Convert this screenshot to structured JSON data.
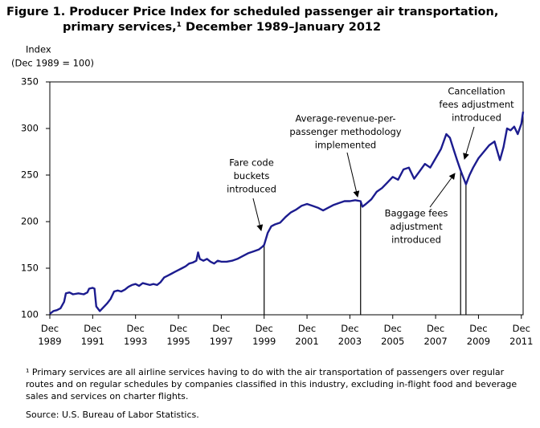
{
  "chart_data": {
    "type": "line",
    "title": "Figure 1. Producer Price Index for scheduled passenger air transportation, primary services,¹ December 1989–January 2012",
    "y_label": [
      "Index",
      "(Dec 1989 = 100)"
    ],
    "color": "#1c1c8f",
    "xlim": [
      "Dec 1989",
      "Jan 2012"
    ],
    "xticks": [
      "Dec 1989",
      "Dec 1991",
      "Dec 1993",
      "Dec 1995",
      "Dec 1997",
      "Dec 1999",
      "Dec 2001",
      "Dec 2003",
      "Dec 2005",
      "Dec 2007",
      "Dec 2009",
      "Dec 2011"
    ],
    "ylim": [
      100,
      350
    ],
    "yticks": [
      100,
      150,
      200,
      250,
      300,
      350
    ],
    "x": [
      "Dec 1989",
      "Feb 1990",
      "Apr 1990",
      "Jun 1990",
      "Aug 1990",
      "Sep 1990",
      "Nov 1990",
      "Jan 1991",
      "Apr 1991",
      "Jul 1991",
      "Sep 1991",
      "Oct 1991",
      "Dec 1991",
      "Jan 1992",
      "Feb 1992",
      "Apr 1992",
      "Jun 1992",
      "Aug 1992",
      "Oct 1992",
      "Dec 1992",
      "Feb 1993",
      "Apr 1993",
      "Jun 1993",
      "Aug 1993",
      "Oct 1993",
      "Dec 1993",
      "Feb 1994",
      "Apr 1994",
      "Jun 1994",
      "Aug 1994",
      "Oct 1994",
      "Dec 1994",
      "Feb 1995",
      "Apr 1995",
      "Jun 1995",
      "Aug 1995",
      "Oct 1995",
      "Dec 1995",
      "Feb 1996",
      "Apr 1996",
      "Jun 1996",
      "Aug 1996",
      "Oct 1996",
      "Nov 1996",
      "Dec 1996",
      "Feb 1997",
      "Apr 1997",
      "Jun 1997",
      "Aug 1997",
      "Oct 1997",
      "Dec 1997",
      "Mar 1998",
      "Jun 1998",
      "Sep 1998",
      "Dec 1998",
      "Mar 1999",
      "Jun 1999",
      "Sep 1999",
      "Nov 1999",
      "Dec 1999",
      "Feb 2000",
      "Apr 2000",
      "Jun 2000",
      "Sep 2000",
      "Dec 2000",
      "Mar 2001",
      "Jun 2001",
      "Sep 2001",
      "Dec 2001",
      "Mar 2002",
      "Jun 2002",
      "Sep 2002",
      "Dec 2002",
      "Mar 2003",
      "Jun 2003",
      "Sep 2003",
      "Dec 2003",
      "Mar 2004",
      "Jun 2004",
      "Jul 2004",
      "Sep 2004",
      "Dec 2004",
      "Mar 2005",
      "Jun 2005",
      "Sep 2005",
      "Dec 2005",
      "Mar 2006",
      "Jun 2006",
      "Sep 2006",
      "Dec 2006",
      "Mar 2007",
      "Jun 2007",
      "Sep 2007",
      "Dec 2007",
      "Mar 2008",
      "Jun 2008",
      "Aug 2008",
      "Oct 2008",
      "Dec 2008",
      "Feb 2009",
      "Mar 2009",
      "May 2009",
      "Jul 2009",
      "Sep 2009",
      "Dec 2009",
      "Mar 2010",
      "Jun 2010",
      "Sep 2010",
      "Dec 2010",
      "Feb 2011",
      "Apr 2011",
      "Jun 2011",
      "Aug 2011",
      "Oct 2011",
      "Dec 2011",
      "Jan 2012"
    ],
    "values": [
      101,
      104,
      105,
      107,
      114,
      123,
      124,
      122,
      123,
      122,
      124,
      128,
      129,
      128,
      109,
      104,
      108,
      112,
      117,
      125,
      126,
      125,
      127,
      130,
      132,
      133,
      131,
      134,
      133,
      132,
      133,
      132,
      135,
      140,
      142,
      144,
      146,
      148,
      150,
      152,
      155,
      156,
      158,
      167,
      160,
      158,
      160,
      157,
      155,
      158,
      157,
      157,
      158,
      160,
      163,
      166,
      168,
      170,
      173,
      175,
      188,
      195,
      197,
      199,
      205,
      210,
      213,
      217,
      219,
      217,
      215,
      212,
      215,
      218,
      220,
      222,
      222,
      223,
      222,
      216,
      219,
      224,
      232,
      236,
      242,
      248,
      245,
      256,
      258,
      246,
      254,
      262,
      258,
      268,
      278,
      294,
      290,
      278,
      266,
      255,
      250,
      240,
      250,
      258,
      268,
      275,
      282,
      286,
      266,
      280,
      300,
      298,
      302,
      294,
      305,
      318
    ],
    "annotations": [
      {
        "lines": [
          "Fare code",
          "buckets",
          "introduced"
        ],
        "x": "Dec 1999"
      },
      {
        "lines": [
          "Average-revenue-per-",
          "passenger methodology",
          "implemented"
        ],
        "x": "Jun 2004"
      },
      {
        "lines": [
          "Baggage fees",
          "adjustment",
          "introduced"
        ],
        "x": "Feb 2009"
      },
      {
        "lines": [
          "Cancellation",
          "fees adjustment",
          "introduced"
        ],
        "x": "May 2009"
      }
    ],
    "footnote": "¹ Primary services are all airline services having to do with the air transportation of passengers over regular routes and on regular schedules by companies classified in this industry, excluding in-flight food and beverage sales and services on charter flights.",
    "source": "Source: U.S. Bureau of Labor Statistics."
  }
}
